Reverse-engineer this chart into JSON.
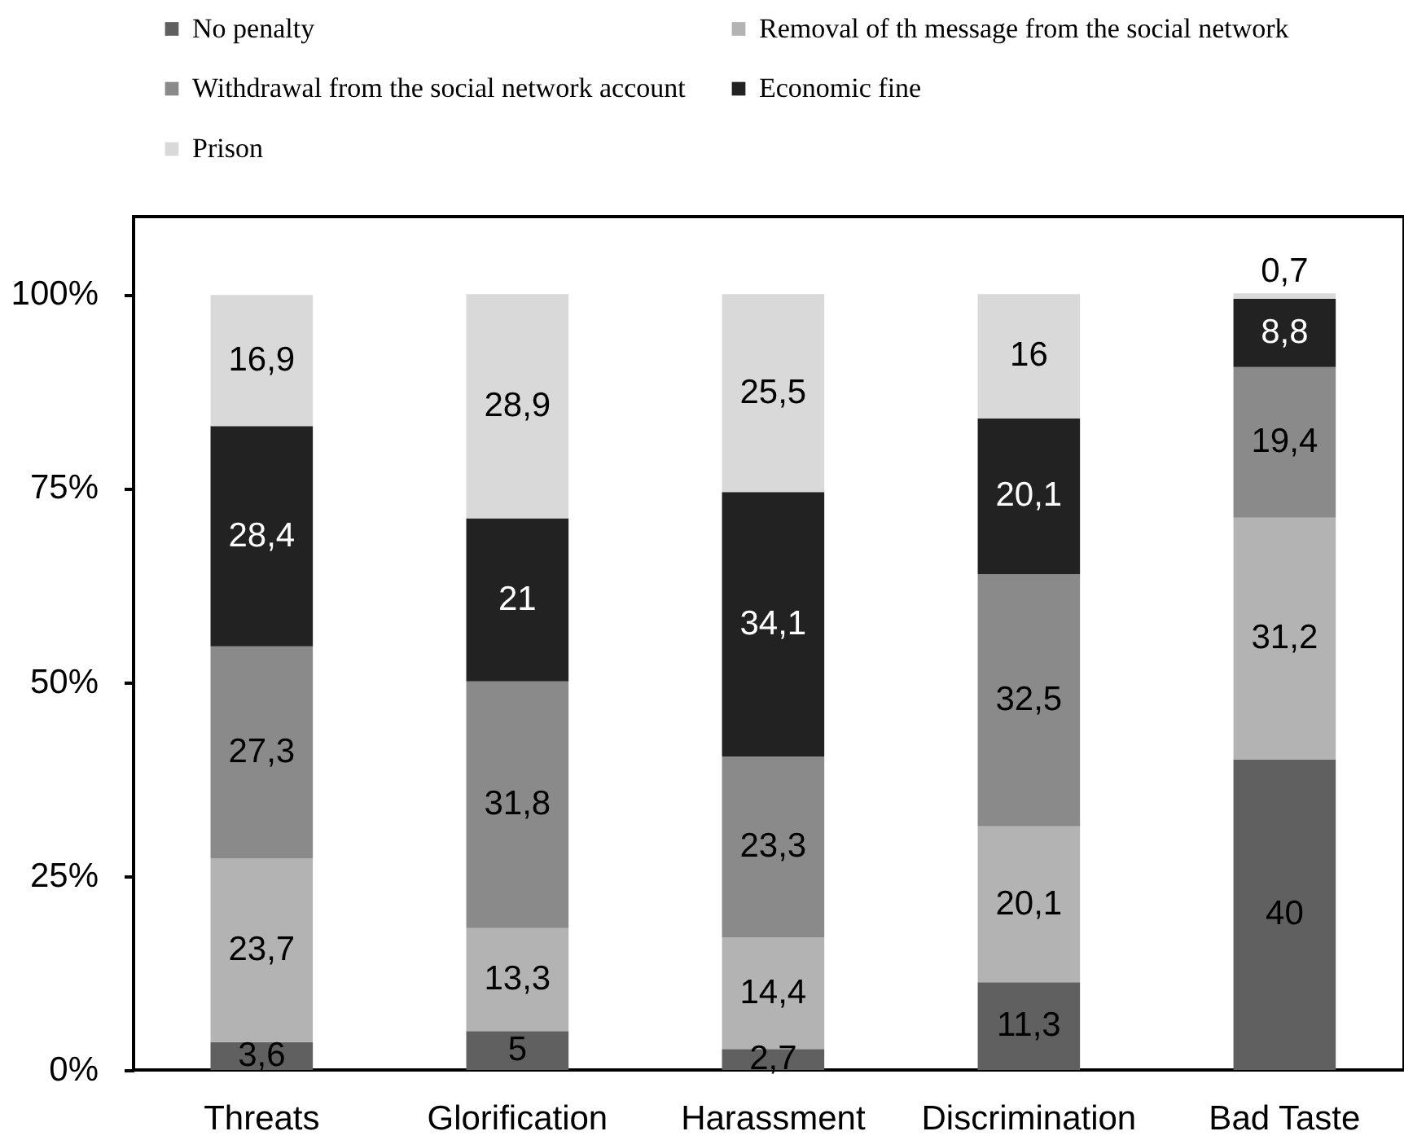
{
  "chart_data": {
    "type": "bar",
    "stacked": true,
    "categories": [
      "Threats",
      "Glorification",
      "Harassment",
      "Discrimination",
      "Bad Taste"
    ],
    "series": [
      {
        "name": "No penalty",
        "color": "#606060",
        "values": [
          3.6,
          5,
          2.7,
          11.3,
          40
        ],
        "value_labels": [
          "3,6",
          "5",
          "2,7",
          "11,3",
          "40"
        ]
      },
      {
        "name": "Removal of th message from the social network",
        "color": "#b3b3b3",
        "values": [
          23.7,
          13.3,
          14.4,
          20.1,
          31.2
        ],
        "value_labels": [
          "23,7",
          "13,3",
          "14,4",
          "20,1",
          "31,2"
        ]
      },
      {
        "name": "Withdrawal from the social network account",
        "color": "#8a8a8a",
        "values": [
          27.3,
          31.8,
          23.3,
          32.5,
          19.4
        ],
        "value_labels": [
          "27,3",
          "31,8",
          "23,3",
          "32,5",
          "19,4"
        ]
      },
      {
        "name": "Economic fine",
        "color": "#222222",
        "values": [
          28.4,
          21,
          34.1,
          20.1,
          8.8
        ],
        "value_labels": [
          "28,4",
          "21",
          "34,1",
          "20,1",
          "8,8"
        ]
      },
      {
        "name": "Prison",
        "color": "#d9d9d9",
        "values": [
          16.9,
          28.9,
          25.5,
          16,
          0.7
        ],
        "value_labels": [
          "16,9",
          "28,9",
          "25,5",
          "16",
          "0,7"
        ]
      }
    ],
    "ylim": [
      0,
      110
    ],
    "yticks": [
      {
        "value": 0,
        "label": "0%"
      },
      {
        "value": 25,
        "label": "25%"
      },
      {
        "value": 50,
        "label": "50%"
      },
      {
        "value": 75,
        "label": "75%"
      },
      {
        "value": 100,
        "label": "100%"
      }
    ],
    "legend": "top",
    "grid": false
  }
}
